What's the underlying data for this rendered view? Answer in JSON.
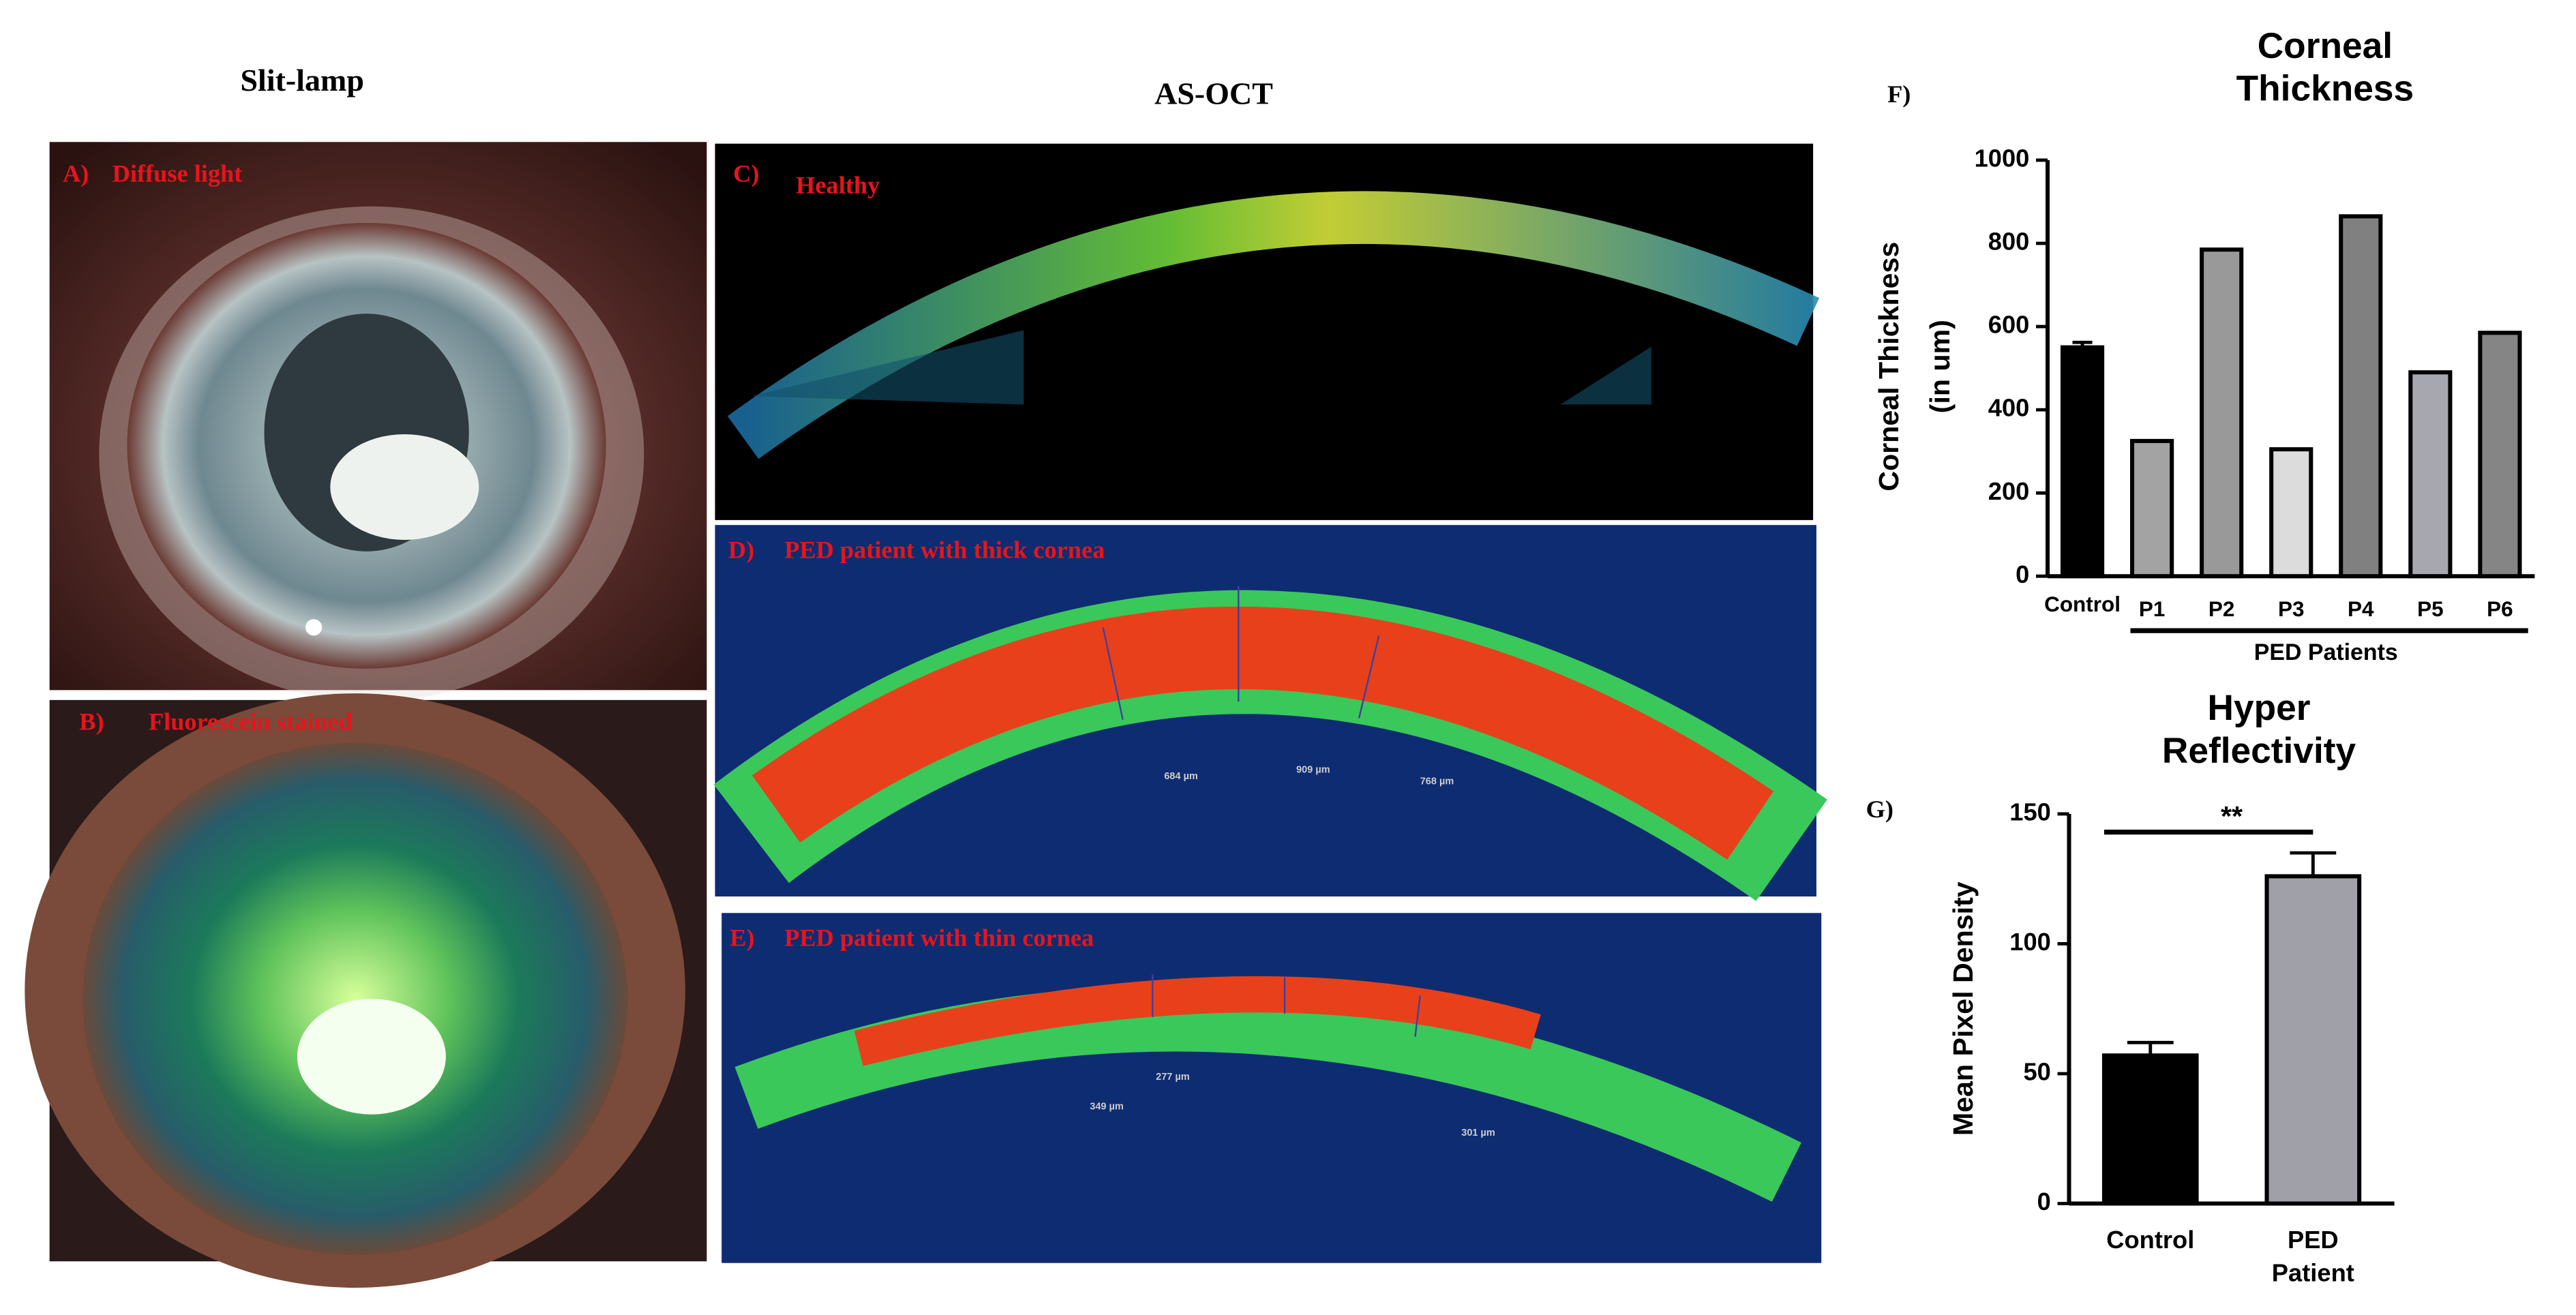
{
  "headings": {
    "slit_lamp": "Slit-lamp",
    "as_oct": "AS-OCT"
  },
  "panels": {
    "A": {
      "label": "A)",
      "caption": "Diffuse light"
    },
    "B": {
      "label": "B)",
      "caption": "Fluorescein stained"
    },
    "C": {
      "label": "C)",
      "caption": "Healthy"
    },
    "D": {
      "label": "D)",
      "caption": "PED patient with thick cornea",
      "measurements": [
        "684 µm",
        "909 µm",
        "768 µm"
      ]
    },
    "E": {
      "label": "E)",
      "caption": "PED patient with thin cornea",
      "measurements": [
        "349 µm",
        "277 µm",
        "301 µm"
      ]
    }
  },
  "chart_data": [
    {
      "type": "bar",
      "panel_label": "F)",
      "title": "Corneal Thickness",
      "ylabel": [
        "Corneal Thickness",
        "(in um)"
      ],
      "categories": [
        "Control",
        "P1",
        "P2",
        "P3",
        "P4",
        "P5",
        "P6"
      ],
      "values": [
        550,
        325,
        785,
        305,
        865,
        490,
        585
      ],
      "errors": [
        12,
        null,
        null,
        null,
        null,
        null,
        null
      ],
      "colors": [
        "#000000",
        "#a3a3a3",
        "#999999",
        "#dcdcdc",
        "#808080",
        "#a7a7b0",
        "#858585"
      ],
      "group_label": "PED Patients",
      "ylim": [
        0,
        1000
      ],
      "yticks": [
        0,
        200,
        400,
        600,
        800,
        1000
      ]
    },
    {
      "type": "bar",
      "panel_label": "G)",
      "title": "Hyper Reflectivity",
      "ylabel": [
        "Mean Pixel Density"
      ],
      "categories": [
        "Control",
        "PED Patient"
      ],
      "values": [
        57,
        126
      ],
      "errors": [
        5,
        9
      ],
      "colors": [
        "#000000",
        "#a0a0a8"
      ],
      "significance": "**",
      "ylim": [
        0,
        150
      ],
      "yticks": [
        0,
        50,
        100,
        150
      ]
    }
  ]
}
